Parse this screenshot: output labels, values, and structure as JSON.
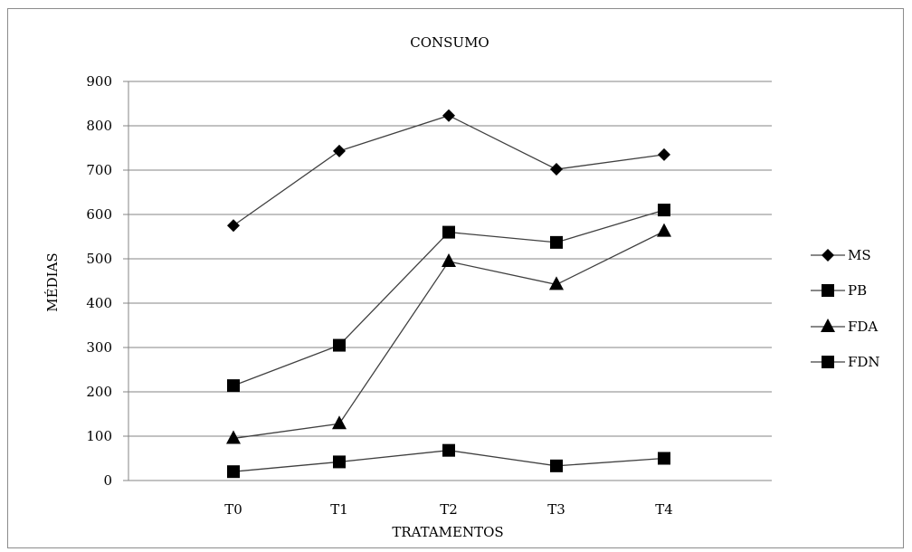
{
  "chart_data": {
    "type": "line",
    "title": "CONSUMO",
    "xlabel": "TRATAMENTOS",
    "ylabel": "MÉDIAS",
    "categories": [
      "T0",
      "T1",
      "T2",
      "T3",
      "T4"
    ],
    "ylim": [
      0,
      900
    ],
    "yticks": [
      "0",
      "100",
      "200",
      "300",
      "400",
      "500",
      "600",
      "700",
      "800",
      "900"
    ],
    "grid": true,
    "legend_position": "right",
    "series": [
      {
        "name": "MS",
        "marker": "diamond",
        "values": [
          575,
          743,
          823,
          702,
          735
        ]
      },
      {
        "name": "PB",
        "marker": "square",
        "values": [
          20,
          42,
          68,
          33,
          50
        ]
      },
      {
        "name": "FDA",
        "marker": "triangle",
        "values": [
          95,
          128,
          494,
          442,
          562
        ]
      },
      {
        "name": "FDN",
        "marker": "square",
        "values": [
          214,
          305,
          560,
          537,
          610
        ]
      }
    ],
    "colors": {
      "line": "#404040",
      "marker": "#000000",
      "grid": "#868686"
    }
  }
}
